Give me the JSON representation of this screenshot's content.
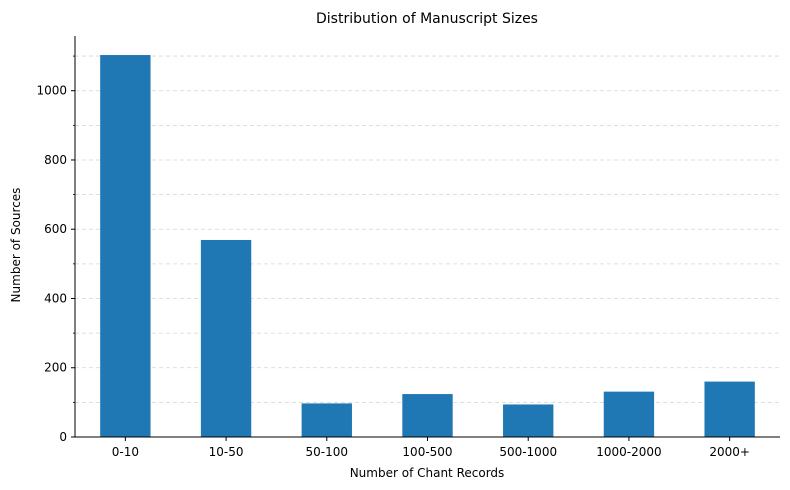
{
  "chart_data": {
    "type": "bar",
    "title": "Distribution of Manuscript Sizes",
    "xlabel": "Number of Chant Records",
    "ylabel": "Number of Sources",
    "categories": [
      "0-10",
      "10-50",
      "50-100",
      "100-500",
      "500-1000",
      "1000-2000",
      "2000+"
    ],
    "values": [
      1103,
      569,
      97,
      124,
      94,
      131,
      160
    ],
    "ylim": [
      0,
      1158
    ],
    "yticks": [
      0,
      200,
      400,
      600,
      800,
      1000
    ],
    "yticks_minor": [
      100,
      300,
      500,
      700,
      900,
      1100
    ],
    "grid": "y-dashed",
    "bar_color": "#1f77b4"
  }
}
